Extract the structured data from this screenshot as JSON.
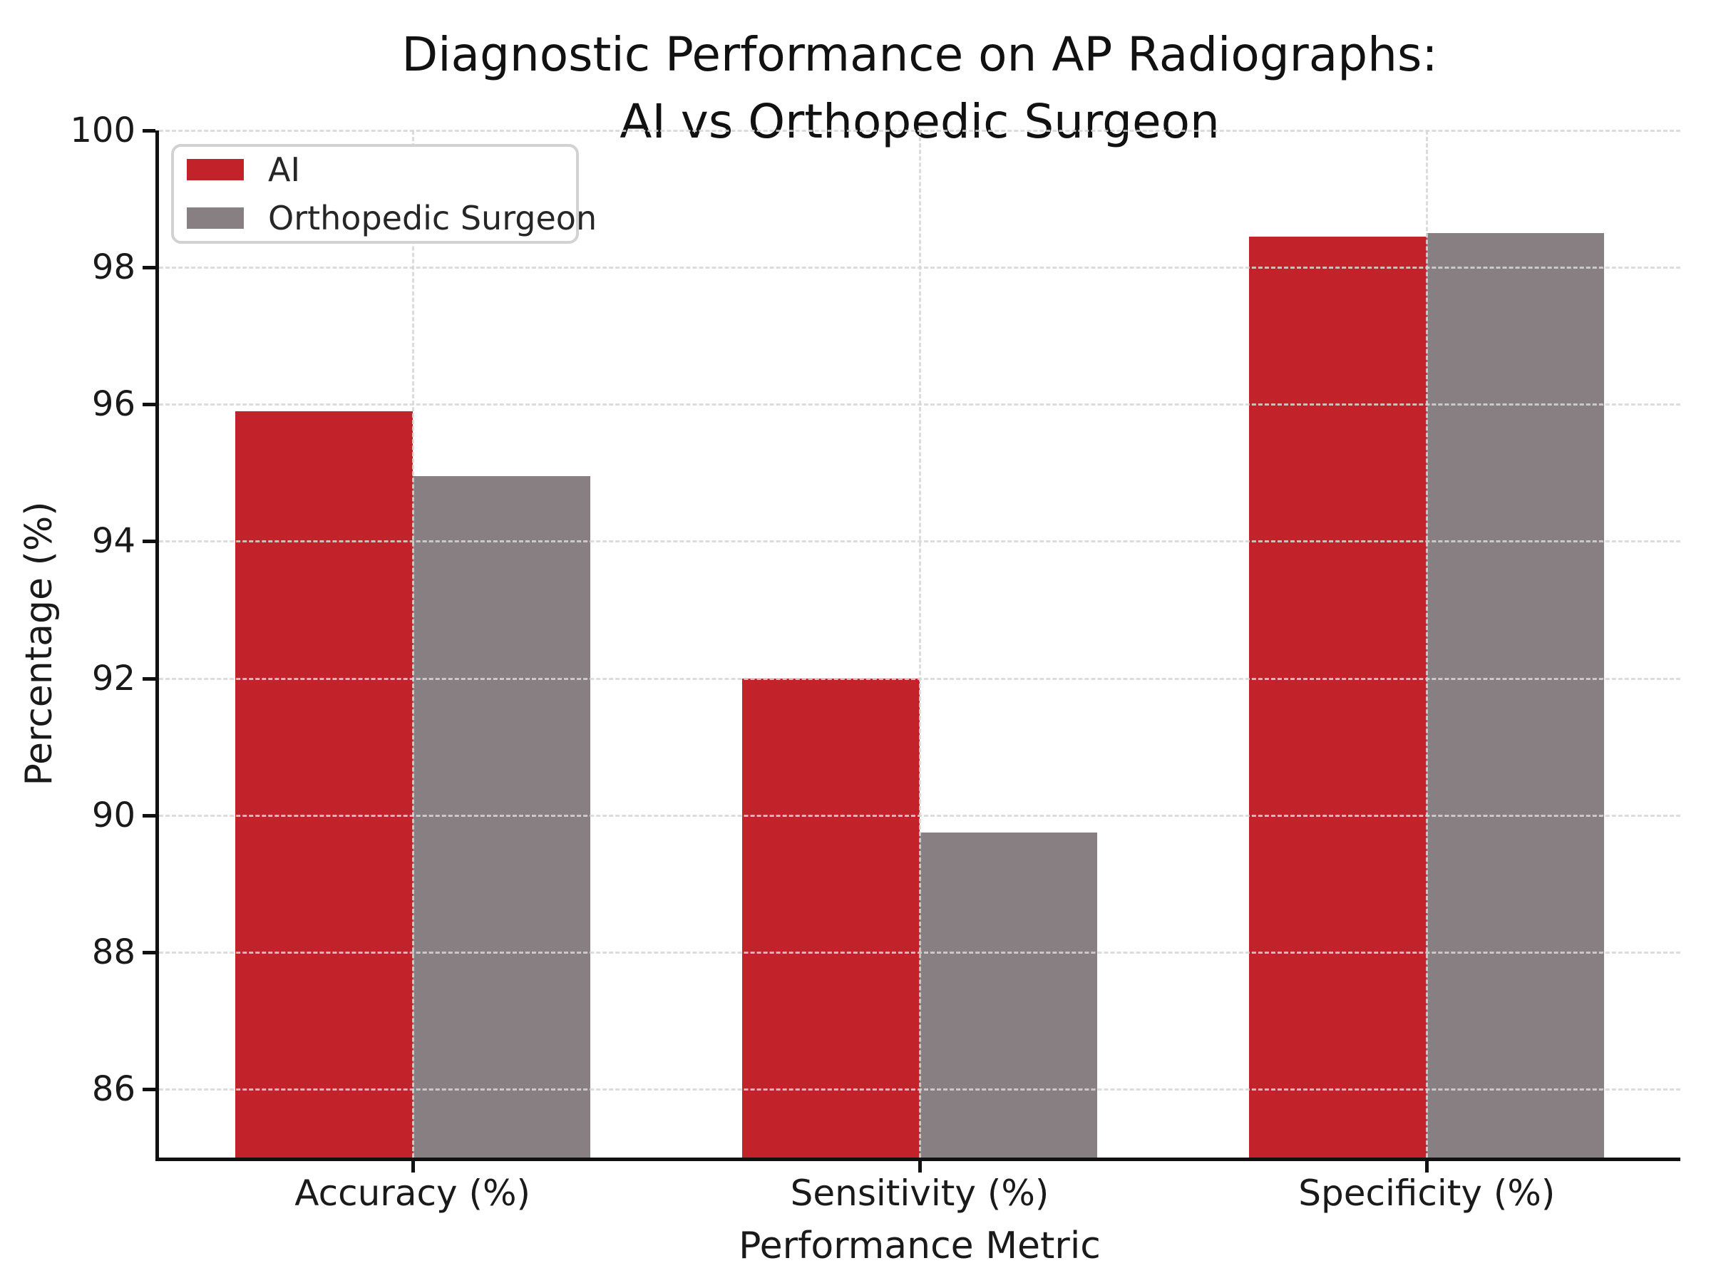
{
  "figure": {
    "background": "#ffffff",
    "spine_color": "#111111",
    "grid_color": "#d6d6d6",
    "text_color": "#1a1a1a"
  },
  "chart_data": {
    "type": "bar",
    "title_lines": [
      "Diagnostic Performance on AP Radiographs:",
      "AI vs Orthopedic Surgeon"
    ],
    "categories": [
      "Accuracy (%)",
      "Sensitivity (%)",
      "Specificity (%)"
    ],
    "series": [
      {
        "name": "AI",
        "color": "#c2232a",
        "values": [
          95.9,
          92.0,
          98.45
        ]
      },
      {
        "name": "Orthopedic Surgeon",
        "color": "#887f82",
        "values": [
          94.95,
          89.75,
          98.5
        ]
      }
    ],
    "xlabel": "Performance Metric",
    "ylabel": "Percentage (%)",
    "ylim": [
      85,
      100
    ],
    "yticks": [
      86,
      88,
      90,
      92,
      94,
      96,
      98,
      100
    ],
    "xlim": [
      -0.5,
      2.5
    ],
    "bar_width_axis_units": 0.35,
    "grid": {
      "linestyle": "dashed",
      "axes": "both"
    },
    "legend_position": "upper-left"
  }
}
